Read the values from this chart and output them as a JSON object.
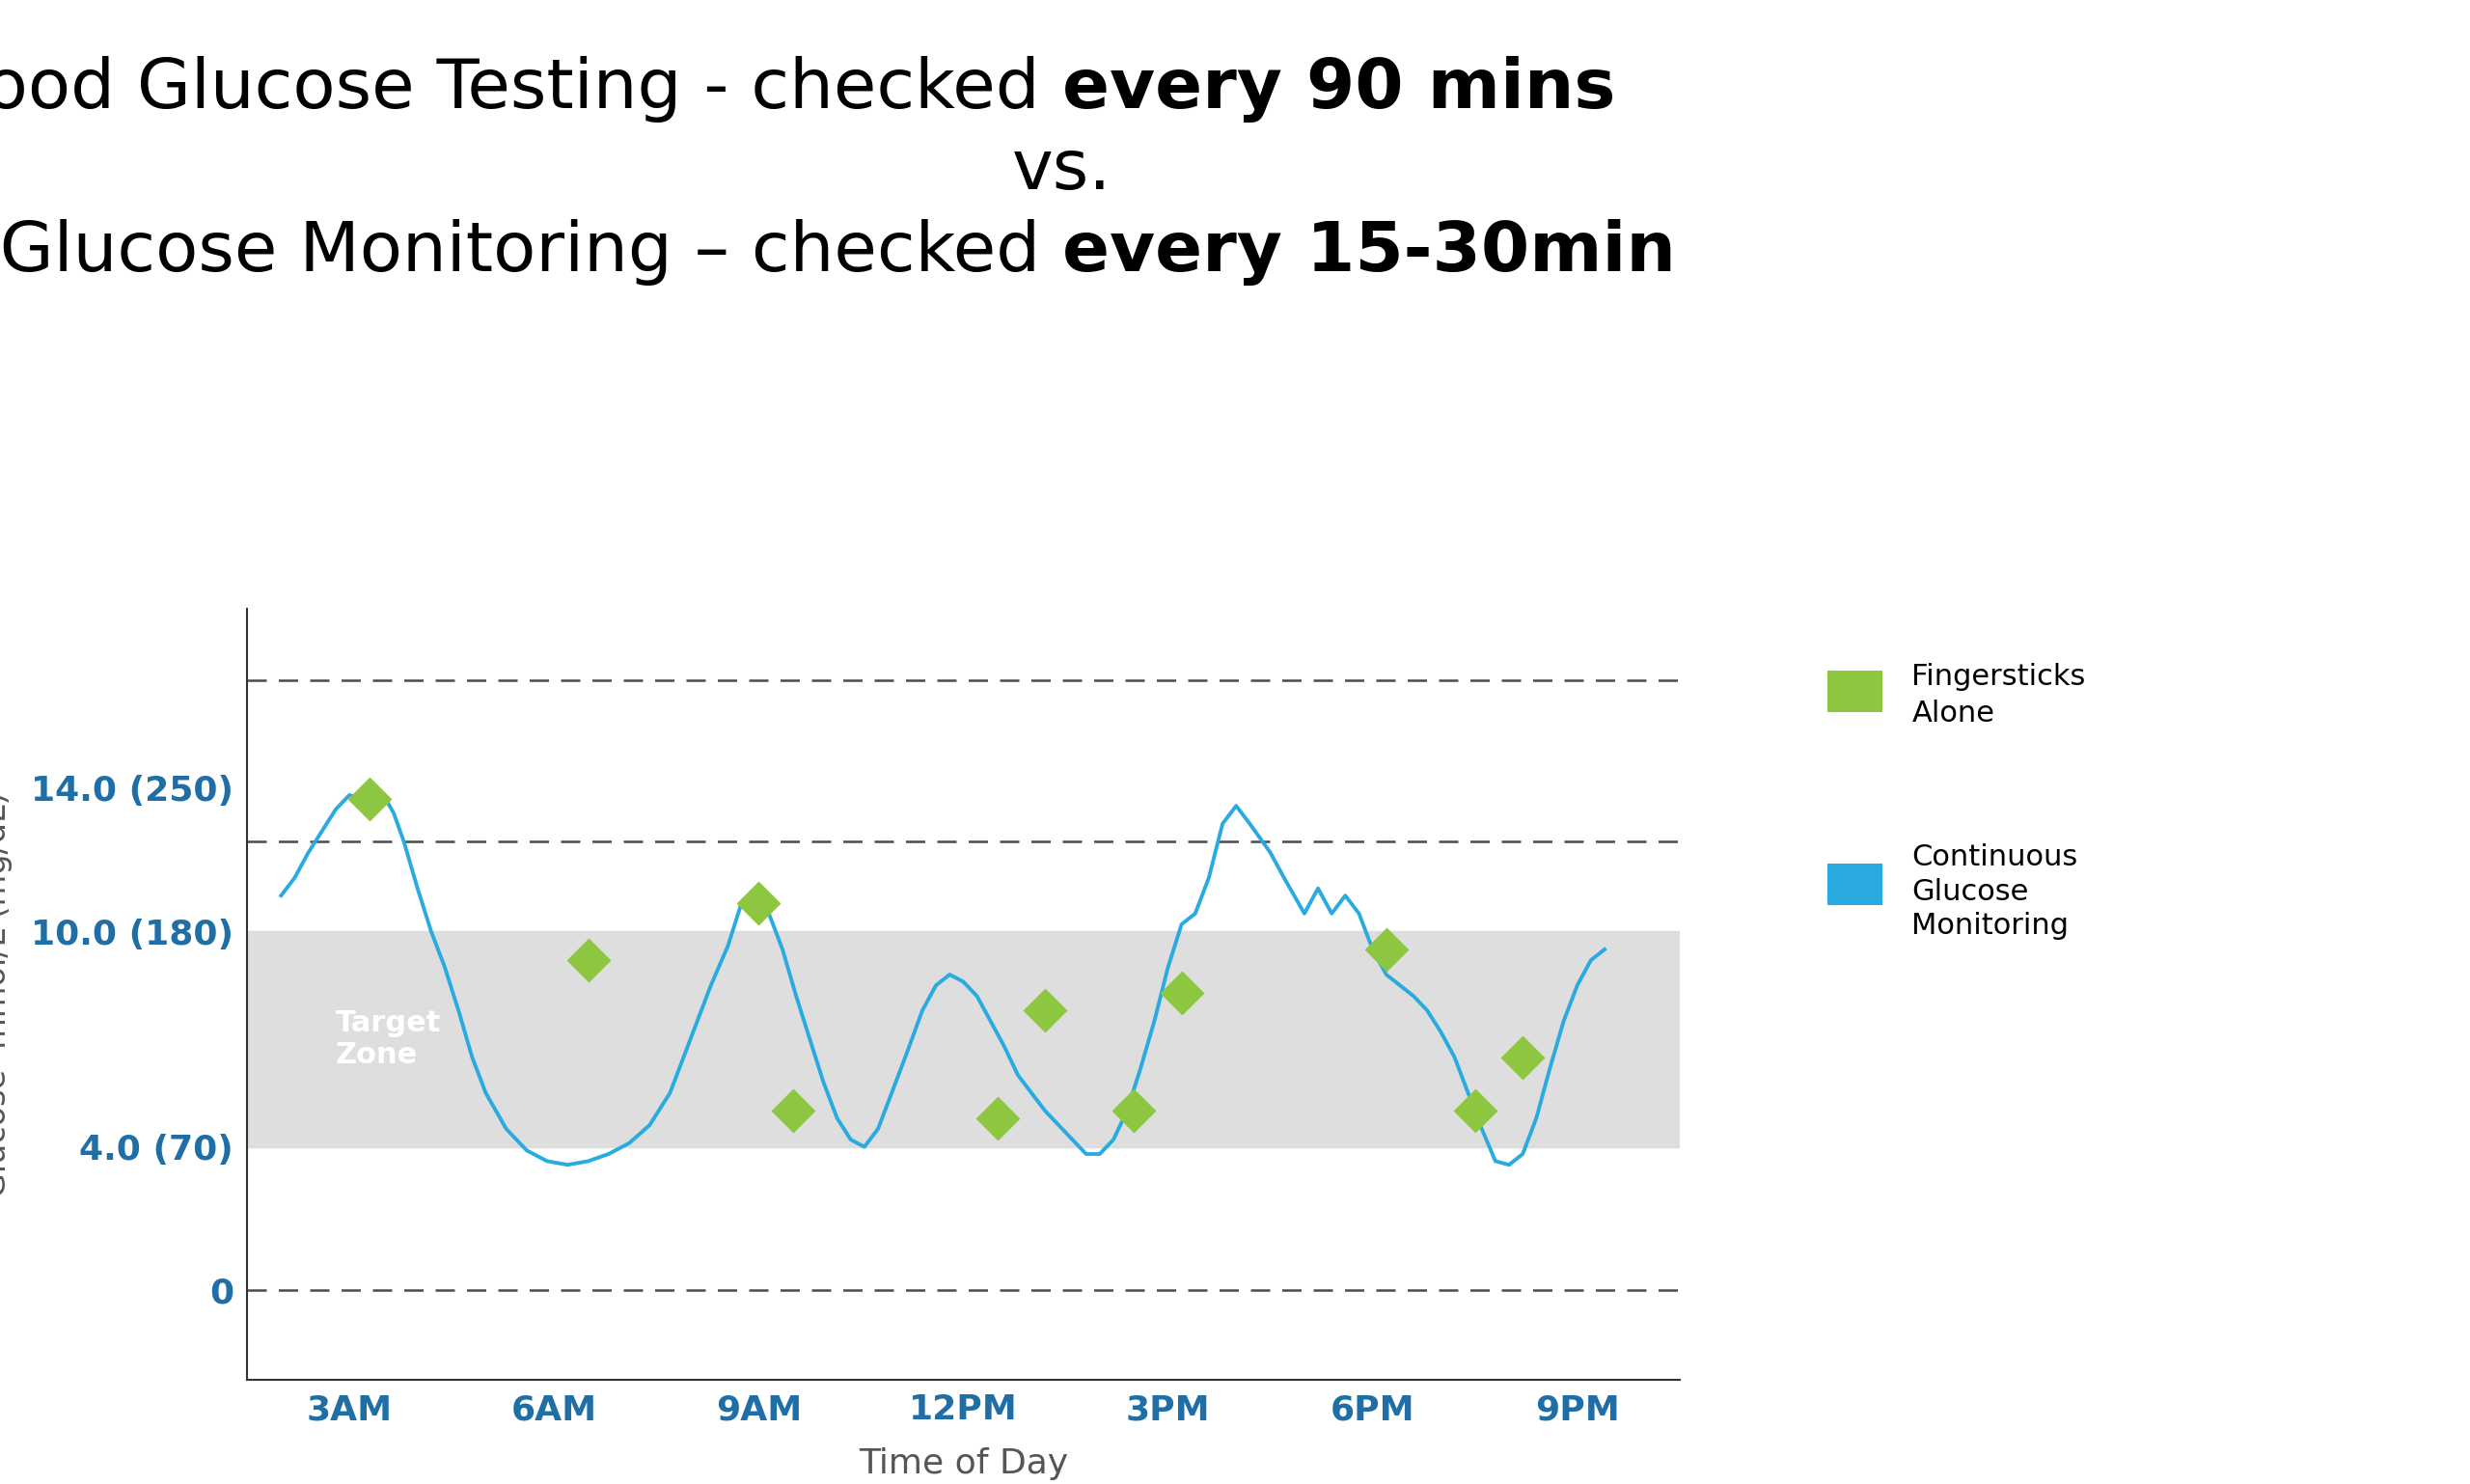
{
  "xlabel": "Time of Day",
  "ytick_labels": [
    "0",
    "4.0 (70)",
    "10.0 (180)",
    "14.0 (250)"
  ],
  "ytick_values": [
    0,
    4.0,
    10.0,
    14.0
  ],
  "xtick_labels": [
    "3AM",
    "6AM",
    "9AM",
    "12PM",
    "3PM",
    "6PM",
    "9PM"
  ],
  "xtick_values": [
    3,
    6,
    9,
    12,
    15,
    18,
    21
  ],
  "target_zone_low": 4.0,
  "target_zone_high": 10.0,
  "target_zone_color": "#d9d9d9",
  "dashed_lines": [
    0.0,
    12.5,
    17.0
  ],
  "ylim_low": -2.5,
  "ylim_high": 19.0,
  "xlim_low": 1.5,
  "xlim_high": 22.5,
  "line_color": "#29ABE2",
  "marker_color": "#8DC63F",
  "legend_label_fingerstick": "Fingersticks\nAlone",
  "legend_label_cgm": "Continuous\nGlucose\nMonitoring",
  "background_color": "#ffffff",
  "axis_label_color": "#1F6EA6",
  "title_color": "#000000",
  "cgm_x": [
    2.0,
    2.2,
    2.4,
    2.6,
    2.8,
    3.0,
    3.15,
    3.3,
    3.5,
    3.65,
    3.8,
    4.0,
    4.2,
    4.4,
    4.6,
    4.8,
    5.0,
    5.3,
    5.6,
    5.9,
    6.2,
    6.5,
    6.8,
    7.1,
    7.4,
    7.7,
    8.0,
    8.3,
    8.55,
    8.75,
    8.95,
    9.15,
    9.35,
    9.55,
    9.75,
    9.95,
    10.15,
    10.35,
    10.55,
    10.75,
    10.95,
    11.15,
    11.4,
    11.6,
    11.8,
    12.0,
    12.2,
    12.4,
    12.6,
    12.8,
    13.0,
    13.2,
    13.4,
    13.6,
    13.8,
    14.0,
    14.2,
    14.4,
    14.6,
    14.8,
    15.0,
    15.2,
    15.4,
    15.6,
    15.8,
    16.0,
    16.2,
    16.5,
    16.7,
    17.0,
    17.2,
    17.4,
    17.6,
    17.8,
    18.0,
    18.2,
    18.4,
    18.6,
    18.8,
    19.0,
    19.2,
    19.4,
    19.6,
    19.8,
    20.0,
    20.2,
    20.4,
    20.6,
    20.8,
    21.0,
    21.2,
    21.4
  ],
  "cgm_y": [
    11.0,
    11.5,
    12.2,
    12.8,
    13.4,
    13.8,
    13.7,
    14.0,
    13.8,
    13.3,
    12.5,
    11.2,
    10.0,
    9.0,
    7.8,
    6.5,
    5.5,
    4.5,
    3.9,
    3.6,
    3.5,
    3.6,
    3.8,
    4.1,
    4.6,
    5.5,
    7.0,
    8.5,
    9.6,
    10.8,
    11.2,
    10.5,
    9.5,
    8.2,
    7.0,
    5.8,
    4.8,
    4.2,
    4.0,
    4.5,
    5.5,
    6.5,
    7.8,
    8.5,
    8.8,
    8.6,
    8.2,
    7.5,
    6.8,
    6.0,
    5.5,
    5.0,
    4.6,
    4.2,
    3.8,
    3.8,
    4.2,
    5.0,
    6.2,
    7.5,
    9.0,
    10.2,
    10.5,
    11.5,
    13.0,
    13.5,
    13.0,
    12.2,
    11.5,
    10.5,
    11.2,
    10.5,
    11.0,
    10.5,
    9.5,
    8.8,
    8.5,
    8.2,
    7.8,
    7.2,
    6.5,
    5.5,
    4.5,
    3.6,
    3.5,
    3.8,
    4.8,
    6.2,
    7.5,
    8.5,
    9.2,
    9.5
  ],
  "fingerstick_x": [
    3.3,
    6.5,
    9.0,
    9.5,
    12.5,
    13.2,
    14.5,
    15.2,
    18.2,
    19.5,
    20.2
  ],
  "fingerstick_y": [
    13.7,
    9.2,
    10.8,
    5.0,
    4.8,
    7.8,
    5.0,
    8.3,
    9.5,
    5.0,
    6.5
  ],
  "title_fontsize": 52,
  "tick_fontsize": 26,
  "label_fontsize": 26
}
